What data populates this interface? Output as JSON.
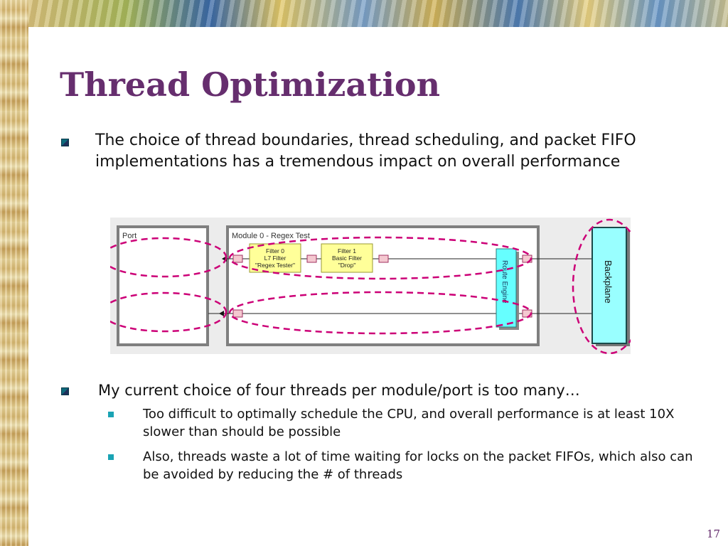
{
  "slide": {
    "title": "Thread Optimization",
    "bullet1": "The choice of thread boundaries, thread scheduling, and packet FIFO implementations has a tremendous impact on overall performance",
    "bullet2": "My current choice of four threads per module/port is too many…",
    "subbullets": [
      "Too difficult to optimally schedule the CPU, and overall performance is at least 10X slower than should be possible",
      "Also, threads waste a lot of time waiting for locks on the packet FIFOs, which also can be avoided by reducing the # of threads"
    ],
    "page_number": "17"
  },
  "diagram": {
    "port_label": "Port",
    "module_label": "Module 0 - Regex Test",
    "filter0": {
      "line1": "Filter 0",
      "line2": "L7 Filter",
      "line3": "\"Regex Tester\""
    },
    "filter1": {
      "line1": "Filter 1",
      "line2": "Basic Filter",
      "line3": "\"Drop\""
    },
    "route_engine_label": "Route Engine",
    "backplane_label": "Backplane",
    "colors": {
      "filter_fill": "#ffff99",
      "route_engine_fill": "#66ffff",
      "backplane_fill": "#99ffff",
      "thread_outline": "#cc0077",
      "title": "#662e6e"
    }
  }
}
